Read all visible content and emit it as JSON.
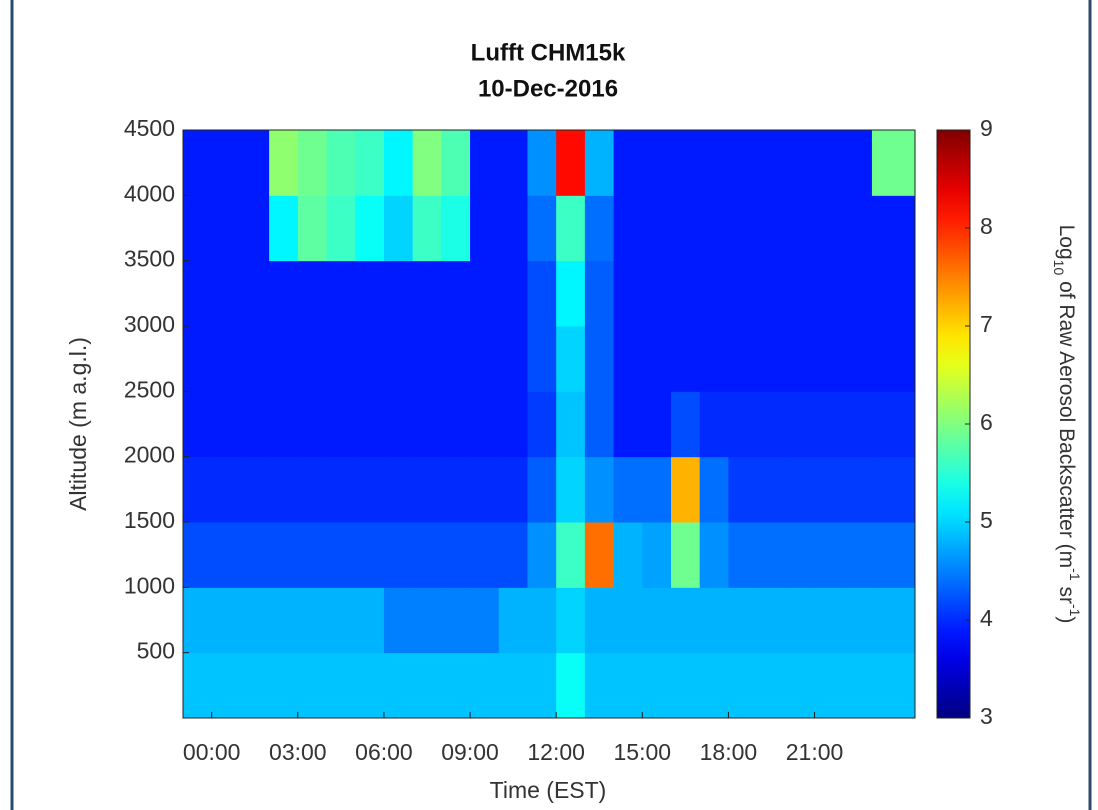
{
  "chart_data": {
    "type": "heatmap",
    "title": [
      "Lufft CHM15k",
      "10-Dec-2016"
    ],
    "xlabel": "Time (EST)",
    "ylabel": "Altitude (m a.g.l.)",
    "colorbar_label": [
      "Log",
      "10",
      " of Raw Aerosol Backscatter (m",
      "-1",
      " sr",
      "-1",
      ")"
    ],
    "colormap": "jet",
    "xlim": [
      -1,
      24.5
    ],
    "ylim": [
      0,
      4500
    ],
    "clim": [
      3,
      9
    ],
    "xticks": [
      {
        "value": 0,
        "label": "00:00"
      },
      {
        "value": 3,
        "label": "03:00"
      },
      {
        "value": 6,
        "label": "06:00"
      },
      {
        "value": 9,
        "label": "09:00"
      },
      {
        "value": 12,
        "label": "12:00"
      },
      {
        "value": 15,
        "label": "15:00"
      },
      {
        "value": 18,
        "label": "18:00"
      },
      {
        "value": 21,
        "label": "21:00"
      }
    ],
    "yticks": [
      500,
      1000,
      1500,
      2000,
      2500,
      3000,
      3500,
      4000,
      4500
    ],
    "cticks": [
      3,
      4,
      5,
      6,
      7,
      8,
      9
    ],
    "xbins": [
      -1,
      0,
      1,
      2,
      3,
      4,
      5,
      6,
      7,
      8,
      9,
      10,
      11,
      12,
      13,
      14,
      15,
      16,
      17,
      18,
      19,
      20,
      21,
      22,
      23,
      24.5
    ],
    "ybins": [
      0,
      500,
      1000,
      1500,
      2000,
      2500,
      3000,
      3500,
      4000,
      4500
    ],
    "z": [
      [
        4.9,
        4.9,
        4.9,
        4.9,
        4.9,
        4.9,
        4.9,
        4.9,
        4.9,
        4.9,
        4.9,
        4.9,
        4.9,
        5.3,
        4.9,
        4.9,
        4.9,
        4.9,
        4.9,
        4.9,
        4.9,
        4.9,
        4.9,
        4.9,
        4.9
      ],
      [
        4.8,
        4.8,
        4.8,
        4.8,
        4.8,
        4.8,
        4.8,
        4.5,
        4.5,
        4.5,
        4.5,
        4.8,
        4.8,
        5.0,
        4.8,
        4.8,
        4.8,
        4.8,
        4.8,
        4.8,
        4.8,
        4.8,
        4.8,
        4.8,
        4.8
      ],
      [
        4.2,
        4.2,
        4.2,
        4.2,
        4.2,
        4.2,
        4.2,
        4.2,
        4.2,
        4.2,
        4.2,
        4.2,
        4.6,
        5.6,
        7.6,
        4.8,
        4.7,
        5.9,
        4.6,
        4.4,
        4.4,
        4.4,
        4.4,
        4.4,
        4.4
      ],
      [
        4.0,
        4.0,
        4.0,
        4.0,
        4.0,
        4.0,
        4.0,
        4.0,
        4.0,
        4.0,
        4.0,
        4.0,
        4.3,
        5.0,
        4.6,
        4.4,
        4.4,
        7.2,
        4.4,
        4.1,
        4.1,
        4.1,
        4.1,
        4.1,
        4.1
      ],
      [
        3.9,
        3.9,
        3.9,
        3.9,
        3.9,
        3.9,
        3.9,
        3.9,
        3.9,
        3.9,
        3.9,
        3.9,
        4.1,
        4.9,
        4.3,
        3.9,
        3.9,
        4.2,
        4.0,
        4.0,
        4.0,
        4.0,
        4.0,
        4.0,
        4.0
      ],
      [
        3.9,
        3.9,
        3.9,
        3.9,
        3.9,
        3.9,
        3.9,
        3.9,
        3.9,
        3.9,
        3.9,
        3.9,
        4.2,
        5.0,
        4.3,
        3.9,
        3.9,
        3.9,
        3.9,
        3.9,
        3.9,
        3.9,
        3.9,
        3.9,
        3.9
      ],
      [
        3.9,
        3.9,
        3.9,
        3.9,
        3.9,
        3.9,
        3.9,
        3.9,
        3.9,
        3.9,
        3.9,
        3.9,
        4.2,
        5.2,
        4.3,
        3.9,
        3.9,
        3.9,
        3.9,
        3.9,
        3.9,
        3.9,
        3.9,
        3.9,
        3.9
      ],
      [
        3.9,
        3.9,
        3.9,
        5.2,
        5.8,
        5.6,
        5.3,
        5.0,
        5.6,
        5.4,
        3.9,
        3.9,
        4.4,
        5.6,
        4.4,
        3.9,
        3.9,
        3.9,
        3.9,
        3.9,
        3.9,
        3.9,
        3.9,
        3.9,
        3.9
      ],
      [
        3.9,
        3.9,
        3.9,
        6.1,
        5.9,
        5.7,
        5.6,
        5.2,
        6.0,
        5.7,
        3.9,
        3.9,
        4.6,
        8.2,
        4.8,
        3.9,
        3.9,
        3.9,
        3.9,
        3.9,
        3.9,
        3.9,
        3.9,
        3.9,
        5.9
      ]
    ]
  }
}
